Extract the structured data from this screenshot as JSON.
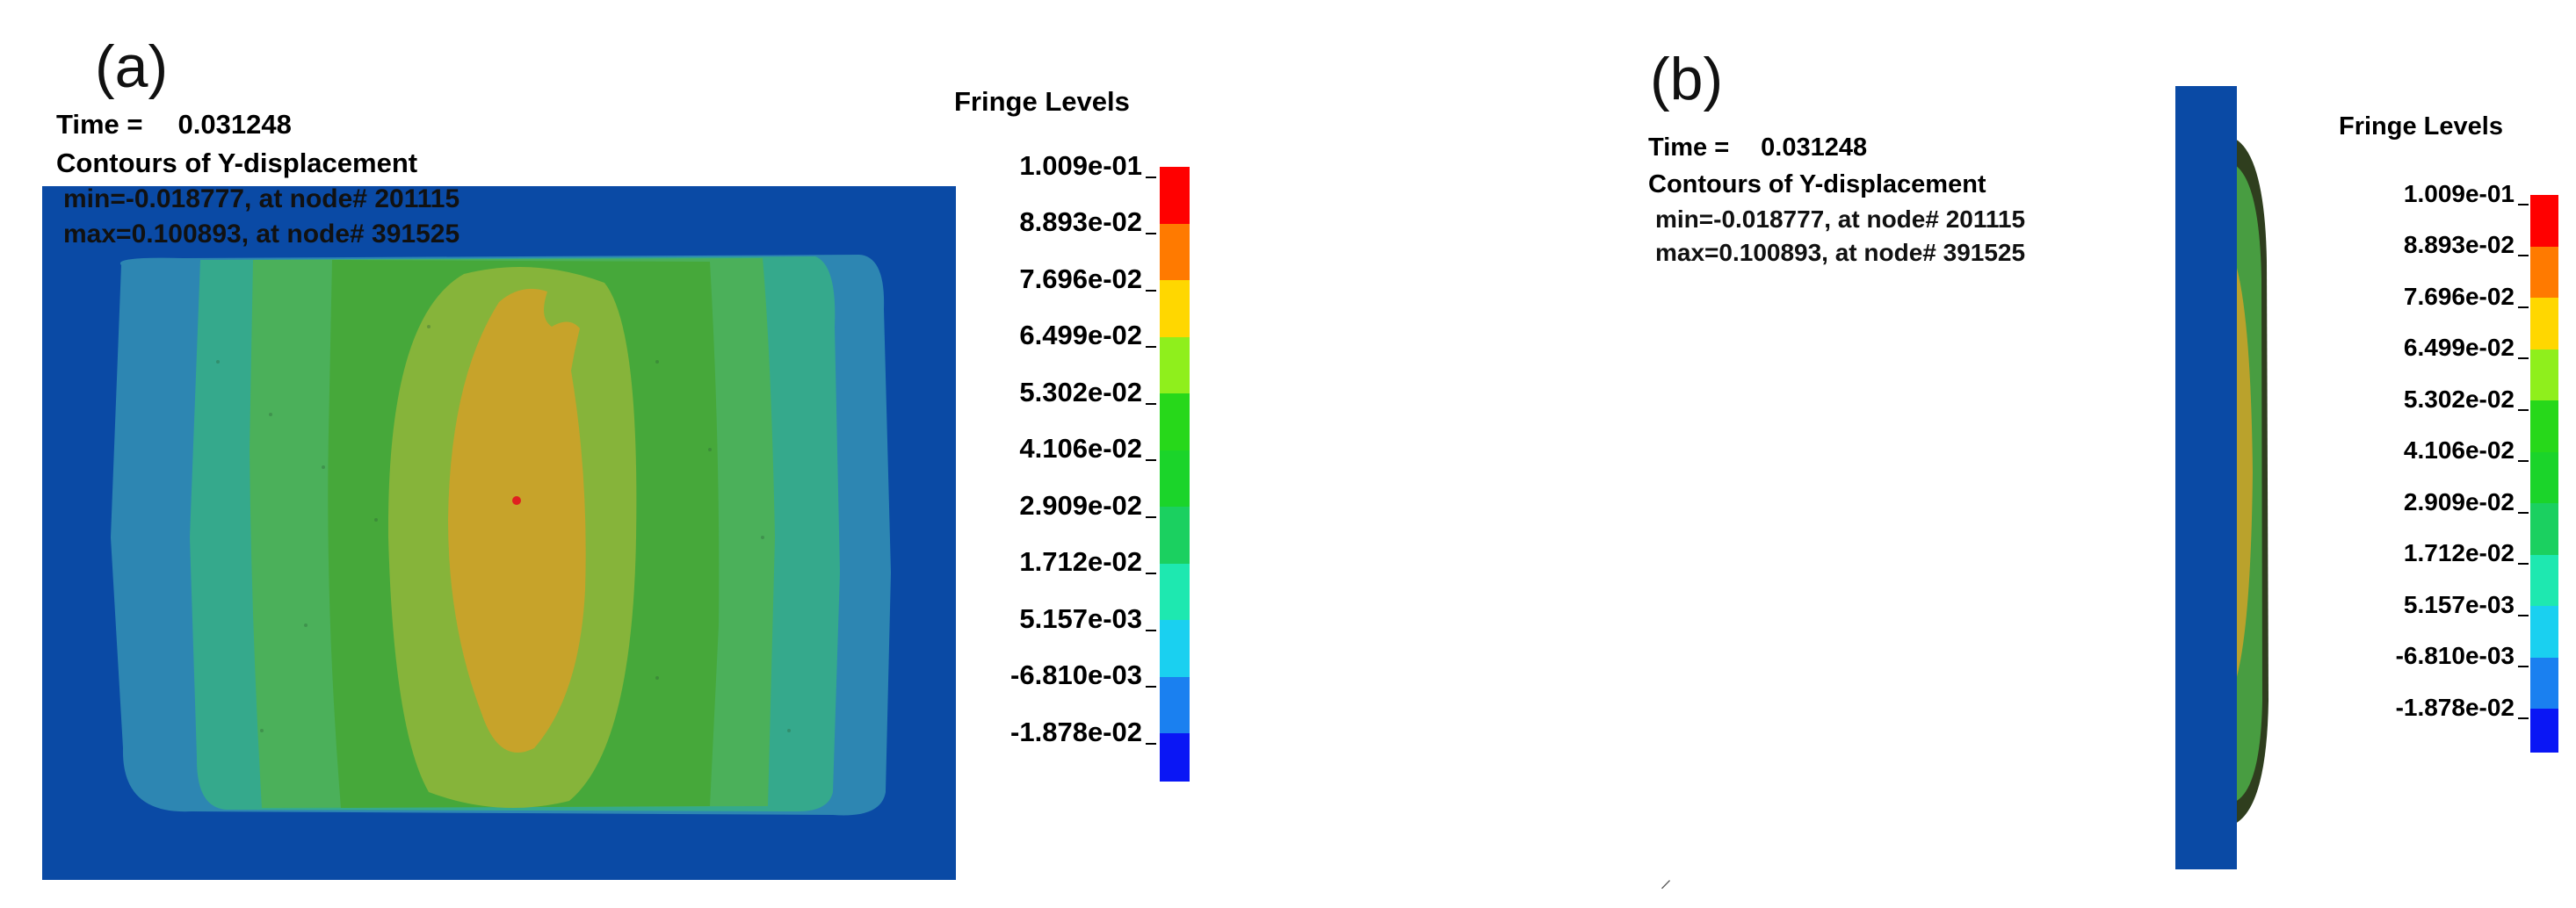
{
  "panels": [
    {
      "label": "(a)",
      "time_label": "Time =",
      "time_value": "0.031248",
      "contour_title": "Contours of Y-displacement",
      "min_line": "min=-0.018777, at node# 201115",
      "max_line": "max=0.100893, at node# 391525",
      "legend_title": "Fringe Levels"
    },
    {
      "label": "(b)",
      "time_label": "Time =",
      "time_value": "0.031248",
      "contour_title": "Contours of Y-displacement",
      "min_line": "min=-0.018777, at node# 201115",
      "max_line": "max=0.100893, at node# 391525",
      "legend_title": "Fringe Levels"
    }
  ],
  "fringe_levels": [
    {
      "value": "1.009e-01",
      "color": "#ff0000"
    },
    {
      "value": "8.893e-02",
      "color": "#ff7a00"
    },
    {
      "value": "7.696e-02",
      "color": "#ffd700"
    },
    {
      "value": "6.499e-02",
      "color": "#8fef1c"
    },
    {
      "value": "5.302e-02",
      "color": "#27d81a"
    },
    {
      "value": "4.106e-02",
      "color": "#1bd42a"
    },
    {
      "value": "2.909e-02",
      "color": "#1bd060"
    },
    {
      "value": "1.712e-02",
      "color": "#1ee8b0"
    },
    {
      "value": "5.157e-03",
      "color": "#1ad0f0"
    },
    {
      "value": "-6.810e-03",
      "color": "#1a80f0"
    },
    {
      "value": "-1.878e-02",
      "color": "#0a16f5"
    }
  ],
  "colors": {
    "model_background": "#0a4aa5",
    "contour_outer": "#2d86b2",
    "contour_cyan": "#35a98c",
    "contour_green_light": "#4bb05a",
    "contour_green": "#46a83a",
    "contour_peak_green": "#86b43a",
    "contour_peak": "#c7a32a",
    "peak_node": "#e02020"
  },
  "footnote_mark": "̷"
}
